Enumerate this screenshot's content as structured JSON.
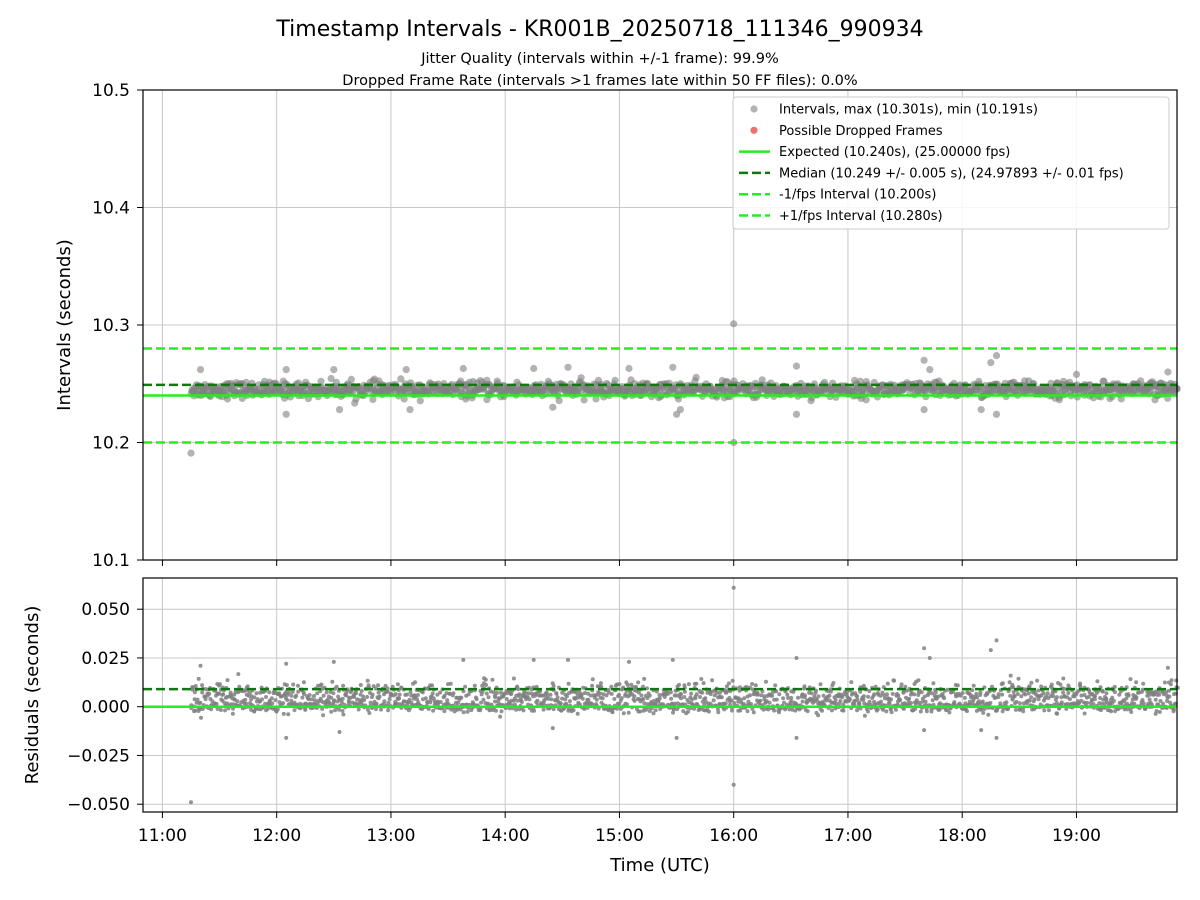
{
  "title": "Timestamp Intervals - KR001B_20250718_111346_990934",
  "subtitle_1": "Jitter Quality (intervals within +/-1 frame): 99.9%",
  "subtitle_2": "Dropped Frame Rate (intervals >1 frames late within 50 FF files): 0.0%",
  "colors": {
    "points": "#808080",
    "dropped": "#f07070",
    "expected": "#22ee22",
    "median": "#117711",
    "interval": "#22ee22",
    "grid": "#c8c8c8"
  },
  "chart_data": [
    {
      "type": "scatter",
      "panel": "intervals",
      "ylabel": "Intervals (seconds)",
      "ylim": [
        10.1,
        10.5
      ],
      "yticks": [
        "10.1",
        "10.2",
        "10.3",
        "10.4",
        "10.5"
      ],
      "x_range_hours": [
        10.83,
        19.88
      ],
      "grid": true,
      "legend_position": "top-right",
      "legend": [
        "Intervals, max (10.301s), min (10.191s)",
        "Possible Dropped Frames",
        "Expected (10.240s), (25.00000 fps)",
        "Median (10.249 +/- 0.005 s), (24.97893 +/- 0.01 fps)",
        "-1/fps Interval (10.200s)",
        "+1/fps Interval (10.280s)"
      ],
      "reference_lines": [
        {
          "value": 10.24,
          "style": "solid",
          "color": "#22ee22"
        },
        {
          "value": 10.249,
          "style": "dashed",
          "color": "#117711"
        },
        {
          "value": 10.2,
          "style": "dashed",
          "color": "#22ee22"
        },
        {
          "value": 10.28,
          "style": "dashed",
          "color": "#22ee22"
        }
      ],
      "band": {
        "start": "11:15",
        "end": "19:53",
        "center": 10.245,
        "spread": 0.006
      },
      "outliers": [
        {
          "x": "11:15",
          "y": 10.191
        },
        {
          "x": "16:00",
          "y": 10.301
        },
        {
          "x": "16:00",
          "y": 10.2
        },
        {
          "x": "11:20",
          "y": 10.262
        },
        {
          "x": "12:05",
          "y": 10.224
        },
        {
          "x": "12:05",
          "y": 10.262
        },
        {
          "x": "12:30",
          "y": 10.262
        },
        {
          "x": "12:33",
          "y": 10.228
        },
        {
          "x": "13:08",
          "y": 10.262
        },
        {
          "x": "13:10",
          "y": 10.228
        },
        {
          "x": "13:38",
          "y": 10.263
        },
        {
          "x": "14:15",
          "y": 10.263
        },
        {
          "x": "14:25",
          "y": 10.23
        },
        {
          "x": "14:33",
          "y": 10.264
        },
        {
          "x": "15:05",
          "y": 10.263
        },
        {
          "x": "15:28",
          "y": 10.264
        },
        {
          "x": "15:30",
          "y": 10.224
        },
        {
          "x": "15:32",
          "y": 10.228
        },
        {
          "x": "16:33",
          "y": 10.265
        },
        {
          "x": "16:33",
          "y": 10.224
        },
        {
          "x": "17:40",
          "y": 10.27
        },
        {
          "x": "17:40",
          "y": 10.228
        },
        {
          "x": "17:43",
          "y": 10.262
        },
        {
          "x": "18:15",
          "y": 10.268
        },
        {
          "x": "18:18",
          "y": 10.274
        },
        {
          "x": "18:18",
          "y": 10.224
        },
        {
          "x": "18:10",
          "y": 10.228
        },
        {
          "x": "19:00",
          "y": 10.258
        },
        {
          "x": "19:48",
          "y": 10.26
        }
      ]
    },
    {
      "type": "scatter",
      "panel": "residuals",
      "xlabel": "Time (UTC)",
      "ylabel": "Residuals (seconds)",
      "ylim": [
        -0.054,
        0.066
      ],
      "yticks": [
        "−0.050",
        "−0.025",
        "0.000",
        "0.025",
        "0.050"
      ],
      "xticks": [
        "11:00",
        "12:00",
        "13:00",
        "14:00",
        "15:00",
        "16:00",
        "17:00",
        "18:00",
        "19:00"
      ],
      "grid": true,
      "reference_lines": [
        {
          "value": 0.0,
          "style": "solid",
          "color": "#22ee22"
        },
        {
          "value": 0.009,
          "style": "dashed",
          "color": "#117711"
        }
      ],
      "band": {
        "start": "11:15",
        "end": "19:53",
        "center": 0.006,
        "spread": 0.006
      },
      "outliers": [
        {
          "x": "11:15",
          "y": -0.049
        },
        {
          "x": "16:00",
          "y": 0.061
        },
        {
          "x": "16:00",
          "y": -0.04
        },
        {
          "x": "11:20",
          "y": 0.021
        },
        {
          "x": "12:05",
          "y": -0.016
        },
        {
          "x": "12:05",
          "y": 0.022
        },
        {
          "x": "12:30",
          "y": 0.023
        },
        {
          "x": "12:33",
          "y": -0.013
        },
        {
          "x": "13:38",
          "y": 0.024
        },
        {
          "x": "14:15",
          "y": 0.024
        },
        {
          "x": "14:25",
          "y": -0.011
        },
        {
          "x": "14:33",
          "y": 0.024
        },
        {
          "x": "15:05",
          "y": 0.023
        },
        {
          "x": "15:28",
          "y": 0.024
        },
        {
          "x": "15:30",
          "y": -0.016
        },
        {
          "x": "16:33",
          "y": 0.025
        },
        {
          "x": "16:33",
          "y": -0.016
        },
        {
          "x": "17:40",
          "y": 0.03
        },
        {
          "x": "17:40",
          "y": -0.012
        },
        {
          "x": "17:43",
          "y": 0.025
        },
        {
          "x": "18:15",
          "y": 0.029
        },
        {
          "x": "18:18",
          "y": 0.034
        },
        {
          "x": "18:18",
          "y": -0.016
        },
        {
          "x": "18:10",
          "y": -0.012
        },
        {
          "x": "19:48",
          "y": 0.02
        }
      ]
    }
  ]
}
